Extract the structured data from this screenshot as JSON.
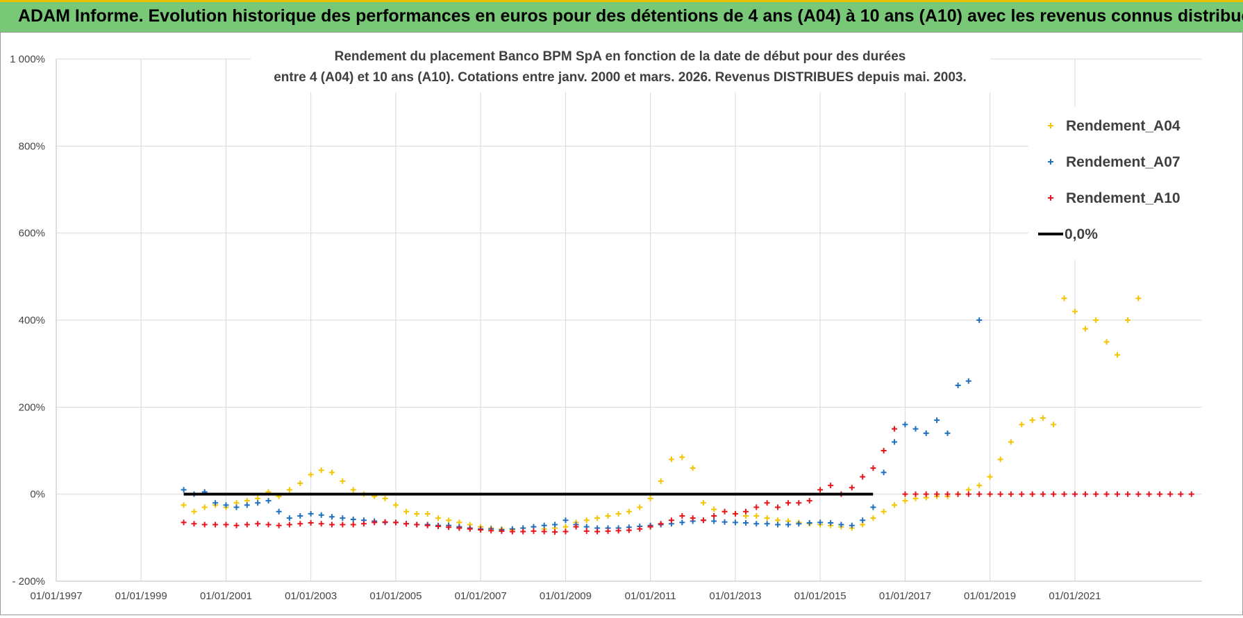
{
  "header": {
    "title": "ADAM Informe. Evolution historique des performances en euros pour des détentions de 4 ans (A04) à 10 ans (A10) avec les revenus connus distribués"
  },
  "chart_data": {
    "type": "scatter",
    "subtitle_line1": "Rendement du placement Banco BPM SpA en fonction de la date de début pour des durées",
    "subtitle_line2": "entre 4 (A04) et 10 ans (A10).  Cotations entre janv. 2000 et mars. 2026.  Revenus DISTRIBUES depuis mai. 2003.",
    "x_range": [
      "1997-01-01",
      "2023-12-31"
    ],
    "y_range": [
      -200,
      1000
    ],
    "x_ticks": [
      "01/01/1997",
      "01/01/1999",
      "01/01/2001",
      "01/01/2003",
      "01/01/2005",
      "01/01/2007",
      "01/01/2009",
      "01/01/2011",
      "01/01/2013",
      "01/01/2015",
      "01/01/2017",
      "01/01/2019",
      "01/01/2021"
    ],
    "y_ticks": [
      "1 000%",
      "800%",
      "600%",
      "400%",
      "200%",
      "0%",
      "- 200%"
    ],
    "y_tick_values": [
      1000,
      800,
      600,
      400,
      200,
      0,
      -200
    ],
    "grid": true,
    "legend_position": "top-right",
    "series": [
      {
        "name": "Rendement_A04",
        "color": "#f5c400",
        "x": [
          "2000-01-03",
          "2000-04-01",
          "2000-07-01",
          "2000-10-01",
          "2001-01-01",
          "2001-04-01",
          "2001-07-01",
          "2001-10-01",
          "2002-01-01",
          "2002-04-01",
          "2002-07-01",
          "2002-10-01",
          "2003-01-01",
          "2003-04-01",
          "2003-07-01",
          "2003-10-01",
          "2004-01-01",
          "2004-04-01",
          "2004-07-01",
          "2004-10-01",
          "2005-01-01",
          "2005-04-01",
          "2005-07-01",
          "2005-10-01",
          "2006-01-01",
          "2006-04-01",
          "2006-07-01",
          "2006-10-01",
          "2007-01-01",
          "2007-04-01",
          "2007-07-01",
          "2007-10-01",
          "2008-01-01",
          "2008-04-01",
          "2008-07-01",
          "2008-10-01",
          "2009-01-01",
          "2009-04-01",
          "2009-07-01",
          "2009-10-01",
          "2010-01-01",
          "2010-04-01",
          "2010-07-01",
          "2010-10-01",
          "2011-01-01",
          "2011-04-01",
          "2011-07-01",
          "2011-10-01",
          "2012-01-01",
          "2012-04-01",
          "2012-07-01",
          "2012-10-01",
          "2013-01-01",
          "2013-04-01",
          "2013-07-01",
          "2013-10-01",
          "2014-01-01",
          "2014-04-01",
          "2014-07-01",
          "2014-10-01",
          "2015-01-01",
          "2015-04-01",
          "2015-07-01",
          "2015-10-01",
          "2016-01-01",
          "2016-04-01",
          "2016-07-01",
          "2016-10-01",
          "2017-01-01",
          "2017-04-01",
          "2017-07-01",
          "2017-10-01",
          "2018-01-01",
          "2018-04-01",
          "2018-07-01",
          "2018-10-01",
          "2019-01-01",
          "2019-04-01",
          "2019-07-01",
          "2019-10-01",
          "2020-01-01",
          "2020-04-01",
          "2020-07-01",
          "2020-10-01",
          "2021-01-01",
          "2021-04-01",
          "2021-07-01",
          "2021-10-01",
          "2022-01-01",
          "2022-04-01",
          "2022-07-01"
        ],
        "y": [
          -25,
          -40,
          -30,
          -25,
          -30,
          -20,
          -15,
          -10,
          5,
          -5,
          10,
          25,
          45,
          55,
          50,
          30,
          10,
          0,
          -5,
          -10,
          -25,
          -40,
          -45,
          -45,
          -55,
          -60,
          -65,
          -70,
          -75,
          -78,
          -80,
          -82,
          -78,
          -75,
          -80,
          -78,
          -75,
          -65,
          -60,
          -55,
          -50,
          -45,
          -40,
          -30,
          -10,
          30,
          80,
          85,
          60,
          -20,
          -35,
          -40,
          -45,
          -50,
          -50,
          -55,
          -60,
          -62,
          -65,
          -68,
          -70,
          -72,
          -75,
          -78,
          -70,
          -55,
          -40,
          -25,
          -15,
          -10,
          -8,
          -5,
          -5,
          0,
          10,
          20,
          40,
          80,
          120,
          160,
          170,
          175,
          160,
          450,
          420,
          380,
          400,
          350,
          320,
          400,
          450
        ]
      },
      {
        "name": "Rendement_A07",
        "color": "#1f6fc0",
        "x": [
          "2000-01-03",
          "2000-04-01",
          "2000-07-01",
          "2000-10-01",
          "2001-01-01",
          "2001-04-01",
          "2001-07-01",
          "2001-10-01",
          "2002-01-01",
          "2002-04-01",
          "2002-07-01",
          "2002-10-01",
          "2003-01-01",
          "2003-04-01",
          "2003-07-01",
          "2003-10-01",
          "2004-01-01",
          "2004-04-01",
          "2004-07-01",
          "2004-10-01",
          "2005-01-01",
          "2005-04-01",
          "2005-07-01",
          "2005-10-01",
          "2006-01-01",
          "2006-04-01",
          "2006-07-01",
          "2006-10-01",
          "2007-01-01",
          "2007-04-01",
          "2007-07-01",
          "2007-10-01",
          "2008-01-01",
          "2008-04-01",
          "2008-07-01",
          "2008-10-01",
          "2009-01-01",
          "2009-04-01",
          "2009-07-01",
          "2009-10-01",
          "2010-01-01",
          "2010-04-01",
          "2010-07-01",
          "2010-10-01",
          "2011-01-01",
          "2011-04-01",
          "2011-07-01",
          "2011-10-01",
          "2012-01-01",
          "2012-04-01",
          "2012-07-01",
          "2012-10-01",
          "2013-01-01",
          "2013-04-01",
          "2013-07-01",
          "2013-10-01",
          "2014-01-01",
          "2014-04-01",
          "2014-07-01",
          "2014-10-01",
          "2015-01-01",
          "2015-04-01",
          "2015-07-01",
          "2015-10-01",
          "2016-01-01",
          "2016-04-01",
          "2016-07-01",
          "2016-10-01",
          "2017-01-01",
          "2017-04-01",
          "2017-07-01",
          "2017-10-01",
          "2018-01-01",
          "2018-04-01",
          "2018-07-01",
          "2018-10-01"
        ],
        "y": [
          10,
          0,
          5,
          -20,
          -25,
          -30,
          -25,
          -20,
          -15,
          -40,
          -55,
          -50,
          -45,
          -48,
          -52,
          -55,
          -58,
          -60,
          -62,
          -65,
          -65,
          -68,
          -70,
          -70,
          -72,
          -72,
          -75,
          -78,
          -80,
          -80,
          -82,
          -80,
          -78,
          -75,
          -72,
          -70,
          -60,
          -70,
          -75,
          -78,
          -78,
          -78,
          -76,
          -74,
          -72,
          -70,
          -68,
          -65,
          -62,
          -60,
          -62,
          -64,
          -65,
          -66,
          -68,
          -68,
          -70,
          -70,
          -68,
          -66,
          -65,
          -66,
          -70,
          -72,
          -60,
          -30,
          50,
          120,
          160,
          150,
          140,
          170,
          140,
          250,
          260,
          400
        ]
      },
      {
        "name": "Rendement_A10",
        "color": "#e8141c",
        "x": [
          "2000-01-03",
          "2000-04-01",
          "2000-07-01",
          "2000-10-01",
          "2001-01-01",
          "2001-04-01",
          "2001-07-01",
          "2001-10-01",
          "2002-01-01",
          "2002-04-01",
          "2002-07-01",
          "2002-10-01",
          "2003-01-01",
          "2003-04-01",
          "2003-07-01",
          "2003-10-01",
          "2004-01-01",
          "2004-04-01",
          "2004-07-01",
          "2004-10-01",
          "2005-01-01",
          "2005-04-01",
          "2005-07-01",
          "2005-10-01",
          "2006-01-01",
          "2006-04-01",
          "2006-07-01",
          "2006-10-01",
          "2007-01-01",
          "2007-04-01",
          "2007-07-01",
          "2007-10-01",
          "2008-01-01",
          "2008-04-01",
          "2008-07-01",
          "2008-10-01",
          "2009-01-01",
          "2009-04-01",
          "2009-07-01",
          "2009-10-01",
          "2010-01-01",
          "2010-04-01",
          "2010-07-01",
          "2010-10-01",
          "2011-01-01",
          "2011-04-01",
          "2011-07-01",
          "2011-10-01",
          "2012-01-01",
          "2012-04-01",
          "2012-07-01",
          "2012-10-01",
          "2013-01-01",
          "2013-04-01",
          "2013-07-01",
          "2013-10-01",
          "2014-01-01",
          "2014-04-01",
          "2014-07-01",
          "2014-10-01",
          "2015-01-01",
          "2015-04-01",
          "2015-07-01",
          "2015-10-01",
          "2016-01-01",
          "2016-04-01",
          "2016-07-01",
          "2016-10-01",
          "2017-01-01",
          "2017-04-01",
          "2017-07-01",
          "2017-10-01",
          "2018-01-01",
          "2018-04-01",
          "2018-07-01",
          "2018-10-01",
          "2019-01-01",
          "2019-04-01",
          "2019-07-01",
          "2019-10-01",
          "2020-01-01",
          "2020-04-01",
          "2020-07-01",
          "2020-10-01",
          "2021-01-01",
          "2021-04-01",
          "2021-07-01",
          "2021-10-01",
          "2022-01-01",
          "2022-04-01",
          "2022-07-01",
          "2022-10-01",
          "2023-01-01",
          "2023-04-01",
          "2023-07-01",
          "2023-10-01"
        ],
        "y": [
          -65,
          -68,
          -70,
          -70,
          -70,
          -72,
          -70,
          -68,
          -70,
          -72,
          -70,
          -68,
          -66,
          -68,
          -70,
          -70,
          -70,
          -68,
          -65,
          -64,
          -65,
          -68,
          -70,
          -72,
          -74,
          -76,
          -78,
          -80,
          -82,
          -84,
          -85,
          -86,
          -86,
          -85,
          -86,
          -87,
          -86,
          -75,
          -85,
          -86,
          -85,
          -84,
          -83,
          -80,
          -75,
          -68,
          -60,
          -50,
          -55,
          -60,
          -50,
          -40,
          -45,
          -40,
          -30,
          -20,
          -30,
          -20,
          -20,
          -15,
          10,
          20,
          0,
          15,
          40,
          60,
          100,
          150,
          0,
          0,
          0,
          0,
          0,
          0,
          0,
          0,
          0,
          0,
          0,
          0,
          0,
          0,
          0,
          0,
          0,
          0,
          0,
          0,
          0,
          0,
          0,
          0,
          0,
          0,
          0,
          0
        ]
      },
      {
        "name": "0,0%",
        "color": "#000000",
        "x": [
          "2000-01-03",
          "2016-03-31"
        ],
        "y": [
          0,
          0
        ]
      }
    ]
  }
}
